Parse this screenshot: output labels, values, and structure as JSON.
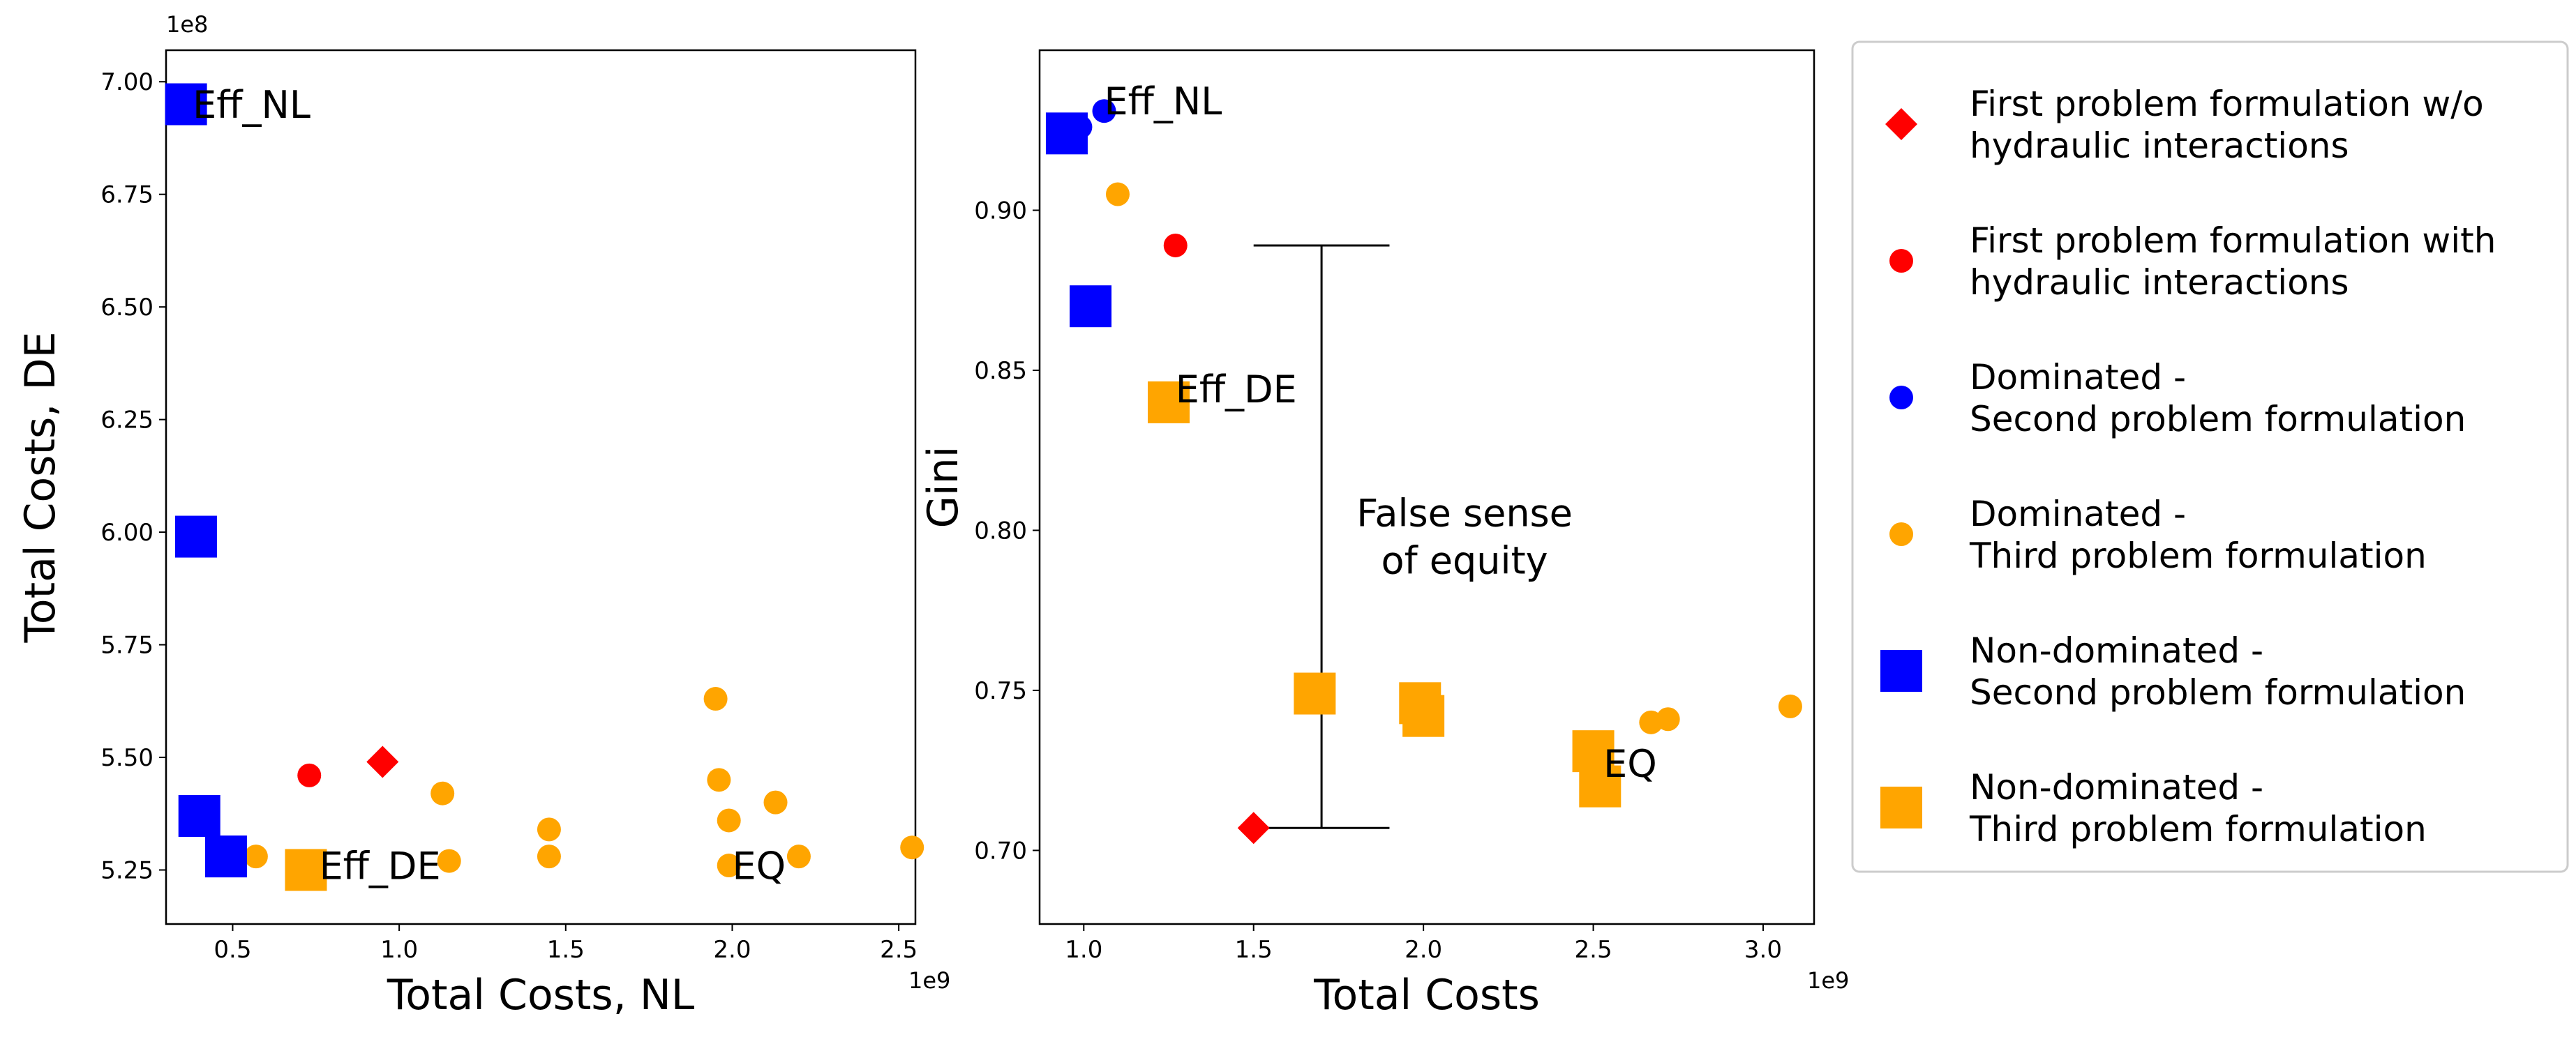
{
  "chart_data": [
    {
      "type": "scatter",
      "xlabel": "Total Costs, NL",
      "ylabel": "Total Costs, DE",
      "x_offset_text": "1e9",
      "y_offset_text": "1e8",
      "x_scale": 1000000000.0,
      "y_scale": 100000000.0,
      "xlim": [
        0.3,
        2.55
      ],
      "ylim": [
        5.13,
        7.07
      ],
      "xticks": [
        "0.5",
        "1.0",
        "1.5",
        "2.0",
        "2.5"
      ],
      "yticks": [
        "5.25",
        "5.50",
        "5.75",
        "6.00",
        "6.25",
        "6.50",
        "6.75",
        "7.00"
      ],
      "series": [
        {
          "name": "First problem formulation w/o hydraulic interactions",
          "marker": "diamond",
          "color": "#ff0000",
          "size": "small",
          "points": [
            [
              0.95,
              5.49
            ]
          ]
        },
        {
          "name": "First problem formulation with hydraulic interactions",
          "marker": "circle",
          "color": "#ff0000",
          "size": "small",
          "points": [
            [
              0.73,
              5.46
            ]
          ]
        },
        {
          "name": "Dominated - Third problem formulation",
          "marker": "circle",
          "color": "#ffa500",
          "size": "small",
          "points": [
            [
              1.13,
              5.42
            ],
            [
              1.15,
              5.27
            ],
            [
              1.45,
              5.34
            ],
            [
              1.45,
              5.28
            ],
            [
              1.95,
              5.63
            ],
            [
              1.96,
              5.45
            ],
            [
              1.99,
              5.36
            ],
            [
              2.13,
              5.4
            ],
            [
              1.99,
              5.26
            ],
            [
              2.2,
              5.28
            ],
            [
              2.54,
              5.3
            ],
            [
              0.57,
              5.28
            ]
          ]
        },
        {
          "name": "Non-dominated - Second problem formulation",
          "marker": "square",
          "color": "#0000ff",
          "size": "large",
          "points": [
            [
              0.36,
              6.95
            ],
            [
              0.39,
              5.99
            ],
            [
              0.4,
              5.37
            ],
            [
              0.48,
              5.28
            ]
          ]
        },
        {
          "name": "Non-dominated - Third problem formulation",
          "marker": "square",
          "color": "#ffa500",
          "size": "large",
          "points": [
            [
              0.72,
              5.25
            ]
          ]
        }
      ],
      "annotations": [
        {
          "text": "Eff_NL",
          "x": 0.38,
          "y": 6.92
        },
        {
          "text": "Eff_DE",
          "x": 0.76,
          "y": 5.23
        },
        {
          "text": "EQ",
          "x": 2.0,
          "y": 5.23
        }
      ]
    },
    {
      "type": "scatter",
      "xlabel": "Total Costs",
      "ylabel": "Gini",
      "x_offset_text": "1e9",
      "x_scale": 1000000000.0,
      "xlim": [
        0.87,
        3.15
      ],
      "ylim": [
        0.677,
        0.95
      ],
      "xticks": [
        "1.0",
        "1.5",
        "2.0",
        "2.5",
        "3.0"
      ],
      "yticks": [
        "0.70",
        "0.75",
        "0.80",
        "0.85",
        "0.90"
      ],
      "series": [
        {
          "name": "First problem formulation w/o hydraulic interactions",
          "marker": "diamond",
          "color": "#ff0000",
          "size": "small",
          "points": [
            [
              1.5,
              0.707
            ]
          ]
        },
        {
          "name": "First problem formulation with hydraulic interactions",
          "marker": "circle",
          "color": "#ff0000",
          "size": "small",
          "points": [
            [
              1.27,
              0.889
            ]
          ]
        },
        {
          "name": "Dominated - Second problem formulation",
          "marker": "circle",
          "color": "#0000ff",
          "size": "small",
          "points": [
            [
              1.06,
              0.931
            ],
            [
              0.99,
              0.926
            ]
          ]
        },
        {
          "name": "Dominated - Third problem formulation",
          "marker": "circle",
          "color": "#ffa500",
          "size": "small",
          "points": [
            [
              1.1,
              0.905
            ],
            [
              2.67,
              0.74
            ],
            [
              2.72,
              0.741
            ],
            [
              3.08,
              0.745
            ]
          ]
        },
        {
          "name": "Non-dominated - Second problem formulation",
          "marker": "square",
          "color": "#0000ff",
          "size": "large",
          "points": [
            [
              0.95,
              0.924
            ],
            [
              1.02,
              0.87
            ]
          ]
        },
        {
          "name": "Non-dominated - Third problem formulation",
          "marker": "square",
          "color": "#ffa500",
          "size": "large",
          "points": [
            [
              1.25,
              0.84
            ],
            [
              1.68,
              0.749
            ],
            [
              1.99,
              0.746
            ],
            [
              2.0,
              0.742
            ],
            [
              2.5,
              0.731
            ],
            [
              2.52,
              0.72
            ]
          ]
        }
      ],
      "annotations": [
        {
          "text": "Eff_NL",
          "x": 1.06,
          "y": 0.93
        },
        {
          "text": "Eff_DE",
          "x": 1.27,
          "y": 0.84
        },
        {
          "text": "EQ",
          "x": 2.53,
          "y": 0.723
        }
      ],
      "bracket": {
        "x": 1.7,
        "y_top": 0.889,
        "y_bottom": 0.707,
        "cap_x0": 1.5,
        "cap_x1": 1.9
      },
      "bracket_text": [
        "False sense",
        "of equity"
      ]
    }
  ],
  "legend": {
    "placement": "right",
    "entries": [
      {
        "marker": "diamond",
        "color": "#ff0000",
        "lines": [
          "First problem formulation w/o",
          "hydraulic interactions"
        ]
      },
      {
        "marker": "circle",
        "color": "#ff0000",
        "lines": [
          "First problem formulation with",
          "hydraulic interactions"
        ]
      },
      {
        "marker": "circle",
        "color": "#0000ff",
        "lines": [
          "Dominated -",
          "Second problem formulation"
        ]
      },
      {
        "marker": "circle",
        "color": "#ffa500",
        "lines": [
          "Dominated -",
          "Third problem formulation"
        ]
      },
      {
        "marker": "square",
        "color": "#0000ff",
        "lines": [
          "Non-dominated -",
          "Second problem formulation"
        ]
      },
      {
        "marker": "square",
        "color": "#ffa500",
        "lines": [
          "Non-dominated -",
          "Third problem formulation"
        ]
      }
    ]
  }
}
